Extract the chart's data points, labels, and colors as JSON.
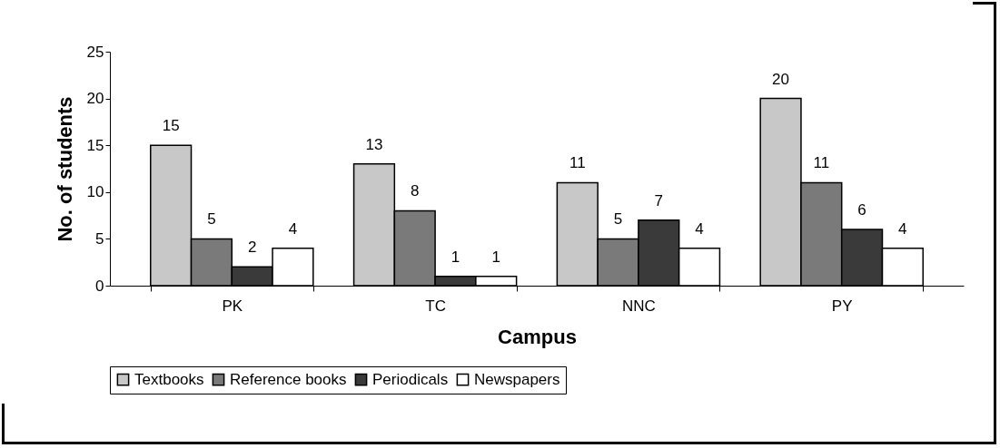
{
  "chart_data": {
    "type": "bar",
    "xlabel": "Campus",
    "ylabel": "No. of students",
    "categories": [
      "PK",
      "TC",
      "NNC",
      "PY"
    ],
    "series": [
      {
        "name": "Textbooks",
        "color": "#c8c8c8",
        "values": [
          15,
          13,
          11,
          20
        ]
      },
      {
        "name": "Reference books",
        "color": "#7a7a7a",
        "values": [
          5,
          8,
          5,
          11
        ]
      },
      {
        "name": "Periodicals",
        "color": "#3a3a3a",
        "values": [
          2,
          1,
          7,
          6
        ]
      },
      {
        "name": "Newspapers",
        "color": "#ffffff",
        "values": [
          4,
          1,
          4,
          4
        ]
      }
    ],
    "ylim": [
      0,
      25
    ],
    "yticks": [
      0,
      5,
      10,
      15,
      20,
      25
    ],
    "grid": false,
    "legend": "bottom",
    "data_labels": true
  }
}
